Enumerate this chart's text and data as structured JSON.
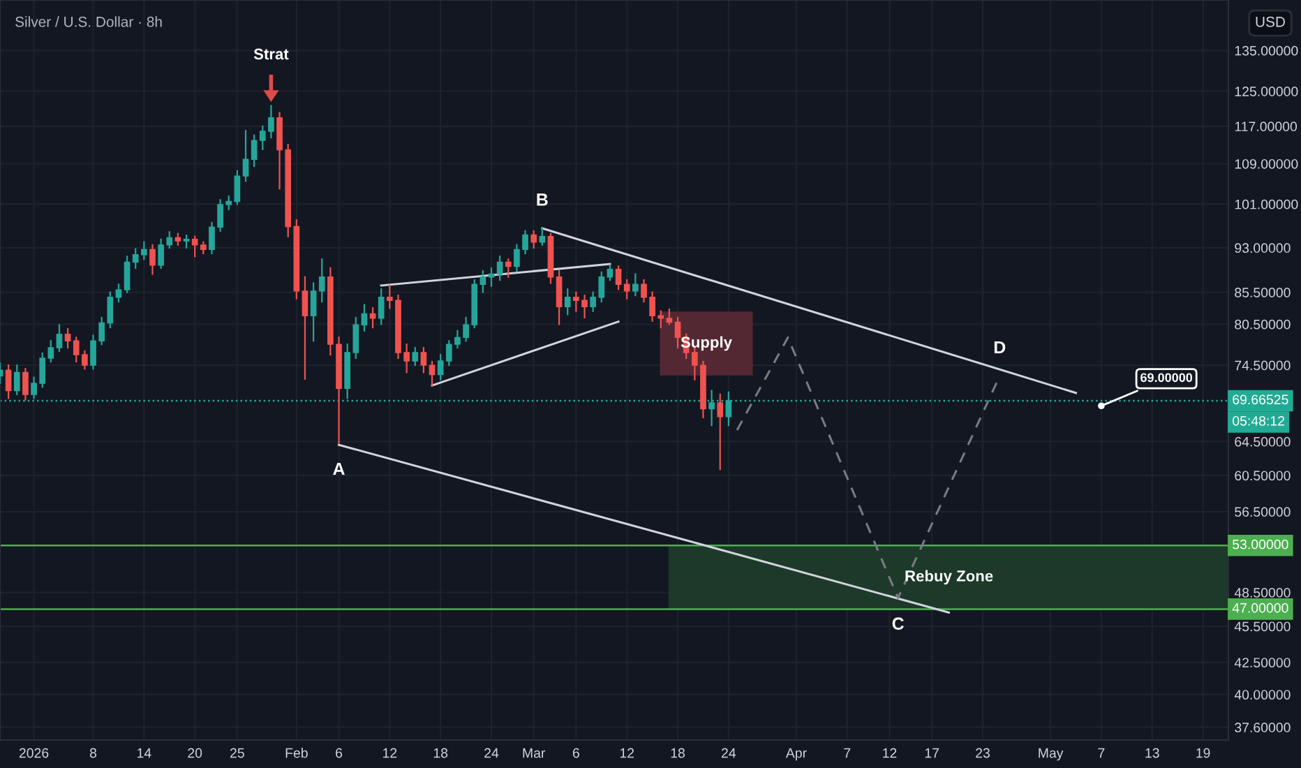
{
  "chart_data": {
    "type": "candlestick",
    "title": "Silver / U.S. Dollar · 8h",
    "ylabel": "USD",
    "x": [
      "2025-12-28",
      "2025-12-29",
      "2025-12-30",
      "2025-12-31",
      "2026-01-01",
      "2026-01-02",
      "2026-01-03",
      "2026-01-04",
      "2026-01-05",
      "2026-01-06",
      "2026-01-07",
      "2026-01-08",
      "2026-01-09",
      "2026-01-10",
      "2026-01-11",
      "2026-01-12",
      "2026-01-13",
      "2026-01-14",
      "2026-01-15",
      "2026-01-16",
      "2026-01-17",
      "2026-01-18",
      "2026-01-19",
      "2026-01-20",
      "2026-01-21",
      "2026-01-22",
      "2026-01-23",
      "2026-01-24",
      "2026-01-25",
      "2026-01-26",
      "2026-01-27",
      "2026-01-28",
      "2026-01-29",
      "2026-01-30",
      "2026-01-31",
      "2026-02-01",
      "2026-02-02",
      "2026-02-03",
      "2026-02-04",
      "2026-02-05",
      "2026-02-06",
      "2026-02-07",
      "2026-02-08",
      "2026-02-09",
      "2026-02-10",
      "2026-02-11",
      "2026-02-12",
      "2026-02-13",
      "2026-02-14",
      "2026-02-15",
      "2026-02-16",
      "2026-02-17",
      "2026-02-18",
      "2026-02-19",
      "2026-02-20",
      "2026-02-21",
      "2026-02-22",
      "2026-02-23",
      "2026-02-24",
      "2026-02-25",
      "2026-02-26",
      "2026-02-27",
      "2026-02-28",
      "2026-03-01",
      "2026-03-02",
      "2026-03-03",
      "2026-03-04",
      "2026-03-05",
      "2026-03-06",
      "2026-03-07",
      "2026-03-08",
      "2026-03-09",
      "2026-03-10",
      "2026-03-11",
      "2026-03-12",
      "2026-03-13",
      "2026-03-14",
      "2026-03-15",
      "2026-03-16",
      "2026-03-17",
      "2026-03-18",
      "2026-03-19",
      "2026-03-20",
      "2026-03-21",
      "2026-03-22",
      "2026-03-23",
      "2026-03-24"
    ],
    "ohlc": [
      [
        73.0,
        74.8,
        72.0,
        73.8
      ],
      [
        73.8,
        74.5,
        70.0,
        71.0
      ],
      [
        71.0,
        74.5,
        70.5,
        73.5
      ],
      [
        73.5,
        74.0,
        69.8,
        70.5
      ],
      [
        70.5,
        72.8,
        70.0,
        72.0
      ],
      [
        72.0,
        76.2,
        71.5,
        75.5
      ],
      [
        75.5,
        78.0,
        75.0,
        77.0
      ],
      [
        77.0,
        80.4,
        76.5,
        79.0
      ],
      [
        79.0,
        79.8,
        77.0,
        78.0
      ],
      [
        78.0,
        78.5,
        75.0,
        76.0
      ],
      [
        76.0,
        76.5,
        74.0,
        74.5
      ],
      [
        74.5,
        78.8,
        74.0,
        78.0
      ],
      [
        78.0,
        81.5,
        77.5,
        80.7
      ],
      [
        80.7,
        85.5,
        80.0,
        84.7
      ],
      [
        84.7,
        86.8,
        84.0,
        85.9
      ],
      [
        85.9,
        91.5,
        85.5,
        90.5
      ],
      [
        90.5,
        92.8,
        89.5,
        91.8
      ],
      [
        91.8,
        94.0,
        91.0,
        92.7
      ],
      [
        92.7,
        93.5,
        88.5,
        90.0
      ],
      [
        90.0,
        94.5,
        89.5,
        93.5
      ],
      [
        93.5,
        95.8,
        93.0,
        94.8
      ],
      [
        94.8,
        95.5,
        93.5,
        94.2
      ],
      [
        94.2,
        95.2,
        93.0,
        94.5
      ],
      [
        94.5,
        95.0,
        91.5,
        93.5
      ],
      [
        93.5,
        94.0,
        92.0,
        92.7
      ],
      [
        92.7,
        97.5,
        92.0,
        96.7
      ],
      [
        96.7,
        101.8,
        96.0,
        100.9
      ],
      [
        100.9,
        102.5,
        100.0,
        101.5
      ],
      [
        101.5,
        107.5,
        101.0,
        106.5
      ],
      [
        106.5,
        116.0,
        105.5,
        109.9
      ],
      [
        109.9,
        115.0,
        108.5,
        113.9
      ],
      [
        113.9,
        117.0,
        112.0,
        115.9
      ],
      [
        115.9,
        121.6,
        114.5,
        118.9
      ],
      [
        118.9,
        120.0,
        104.0,
        111.9
      ],
      [
        111.9,
        113.0,
        95.0,
        96.8
      ],
      [
        96.8,
        98.0,
        84.5,
        85.7
      ],
      [
        85.7,
        88.0,
        72.6,
        81.8
      ],
      [
        81.8,
        87.0,
        78.0,
        85.7
      ],
      [
        85.7,
        91.0,
        84.0,
        88.0
      ],
      [
        88.0,
        89.5,
        76.0,
        77.5
      ],
      [
        77.5,
        78.5,
        64.3,
        71.3
      ],
      [
        71.3,
        77.5,
        70.0,
        76.3
      ],
      [
        76.3,
        81.5,
        75.5,
        80.4
      ],
      [
        80.4,
        83.5,
        79.5,
        82.1
      ],
      [
        82.1,
        83.0,
        80.0,
        81.4
      ],
      [
        81.4,
        86.0,
        80.5,
        84.7
      ],
      [
        84.7,
        86.6,
        83.0,
        84.2
      ],
      [
        84.2,
        85.0,
        75.5,
        76.3
      ],
      [
        76.3,
        77.5,
        73.5,
        75.1
      ],
      [
        75.1,
        77.0,
        74.5,
        76.3
      ],
      [
        76.3,
        77.0,
        73.5,
        74.5
      ],
      [
        74.5,
        75.0,
        71.7,
        73.2
      ],
      [
        73.2,
        76.0,
        72.5,
        75.1
      ],
      [
        75.1,
        78.0,
        74.5,
        77.5
      ],
      [
        77.5,
        79.5,
        77.0,
        78.5
      ],
      [
        78.5,
        81.5,
        78.0,
        80.4
      ],
      [
        80.4,
        87.5,
        80.0,
        86.8
      ],
      [
        86.8,
        89.0,
        85.5,
        88.0
      ],
      [
        88.0,
        89.5,
        86.5,
        88.5
      ],
      [
        88.5,
        91.5,
        87.5,
        90.5
      ],
      [
        90.5,
        91.0,
        88.0,
        89.8
      ],
      [
        89.8,
        93.5,
        89.0,
        92.7
      ],
      [
        92.7,
        96.0,
        92.0,
        95.3
      ],
      [
        95.3,
        96.0,
        93.0,
        94.0
      ],
      [
        94.0,
        96.5,
        93.5,
        95.0
      ],
      [
        95.0,
        95.5,
        87.0,
        88.0
      ],
      [
        88.0,
        89.0,
        80.5,
        83.2
      ],
      [
        83.2,
        86.0,
        82.0,
        84.7
      ],
      [
        84.7,
        85.5,
        82.5,
        84.2
      ],
      [
        84.2,
        85.0,
        81.5,
        83.2
      ],
      [
        83.2,
        85.5,
        82.5,
        84.7
      ],
      [
        84.7,
        88.8,
        84.0,
        88.0
      ],
      [
        88.0,
        90.0,
        87.5,
        89.3
      ],
      [
        89.3,
        89.8,
        86.0,
        86.8
      ],
      [
        86.8,
        87.5,
        84.5,
        85.7
      ],
      [
        85.7,
        88.5,
        85.0,
        86.8
      ],
      [
        86.8,
        87.5,
        84.0,
        84.7
      ],
      [
        84.7,
        85.5,
        81.0,
        81.8
      ],
      [
        81.8,
        82.5,
        80.0,
        81.4
      ],
      [
        81.4,
        82.8,
        80.5,
        80.8
      ],
      [
        80.8,
        81.5,
        77.0,
        78.5
      ],
      [
        78.5,
        79.0,
        75.5,
        76.3
      ],
      [
        76.3,
        77.0,
        72.5,
        74.5
      ],
      [
        74.5,
        75.0,
        67.5,
        68.6
      ],
      [
        68.6,
        71.0,
        66.5,
        69.4
      ],
      [
        69.4,
        70.5,
        61.2,
        67.6
      ],
      [
        67.6,
        70.8,
        66.5,
        69.67
      ]
    ],
    "series": [
      {
        "type": "line",
        "color": "#d1d4dc",
        "x": [
          "2026-03-02",
          "2026-05-04"
        ],
        "values": [
          96.5,
          70.7
        ]
      },
      {
        "type": "line",
        "color": "#d1d4dc",
        "x": [
          "2026-02-06",
          "2026-04-19"
        ],
        "values": [
          64.1,
          46.7
        ]
      },
      {
        "type": "line",
        "color": "#d1d4dc",
        "x": [
          "2026-02-11",
          "2026-03-10"
        ],
        "values": [
          86.6,
          90.2
        ]
      },
      {
        "type": "line",
        "color": "#d1d4dc",
        "x": [
          "2026-02-17",
          "2026-03-11"
        ],
        "values": [
          71.7,
          80.9
        ]
      },
      {
        "type": "line",
        "color": "#787b86",
        "line_style": "dashed",
        "x": [
          "2026-03-25",
          "2026-03-31",
          "2026-04-13",
          "2026-04-25"
        ],
        "values": [
          65.9,
          78.5,
          48.0,
          73.0
        ]
      }
    ],
    "bands": [
      {
        "axis": "y",
        "from": 73.2,
        "to": 82.3,
        "label": "Supply",
        "color": "#5b2a35"
      },
      {
        "axis": "y",
        "from": 47,
        "to": 53,
        "label": "Rebuy Zone",
        "color": "#1f3d2b"
      }
    ],
    "ref_lines": [
      {
        "axis": "y",
        "value": 69.66525,
        "label": "69.66525",
        "color": "#22ab94",
        "line_style": "dotted"
      },
      {
        "axis": "y",
        "value": 53,
        "label": "53.00000",
        "color": "#4caf50"
      },
      {
        "axis": "y",
        "value": 47,
        "label": "47.00000",
        "color": "#4caf50"
      }
    ],
    "annotations": [
      {
        "text": "Strat",
        "x": "2026-01-29",
        "y": 121.6
      },
      {
        "text": "A",
        "x": "2026-02-06",
        "y": 64.3
      },
      {
        "text": "B",
        "x": "2026-03-02",
        "y": 96.5
      },
      {
        "text": "C",
        "x": "2026-04-13",
        "y": 48.0
      },
      {
        "text": "D",
        "x": "2026-04-25",
        "y": 73.0
      },
      {
        "text": "69.00000",
        "x": "2026-05-07",
        "y": 69.0
      },
      "05:48:12"
    ],
    "ylim": [
      36.7,
      148.5
    ],
    "yticks": [
      {
        "value": 135,
        "label": "135.00000"
      },
      {
        "value": 125,
        "label": "125.00000"
      },
      {
        "value": 117,
        "label": "117.00000"
      },
      {
        "value": 109,
        "label": "109.00000"
      },
      {
        "value": 101,
        "label": "101.00000"
      },
      {
        "value": 93,
        "label": "93.00000"
      },
      {
        "value": 85.5,
        "label": "85.50000"
      },
      {
        "value": 80.5,
        "label": "80.50000"
      },
      {
        "value": 74.5,
        "label": "74.50000"
      },
      {
        "value": 64.5,
        "label": "64.50000"
      },
      {
        "value": 60.5,
        "label": "60.50000"
      },
      {
        "value": 56.5,
        "label": "56.50000"
      },
      {
        "value": 48.5,
        "label": "48.50000"
      },
      {
        "value": 45.5,
        "label": "45.50000"
      },
      {
        "value": 42.5,
        "label": "42.50000"
      },
      {
        "value": 40,
        "label": "40.00000"
      },
      {
        "value": 37.6,
        "label": "37.60000"
      }
    ],
    "xlim": [
      "2025-12-28",
      "2026-05-22"
    ],
    "xticks": [
      {
        "value": "2026-01-01",
        "label": "2026"
      },
      {
        "value": "2026-01-08",
        "label": "8"
      },
      {
        "value": "2026-01-14",
        "label": "14"
      },
      {
        "value": "2026-01-20",
        "label": "20"
      },
      {
        "value": "2026-01-25",
        "label": "25"
      },
      {
        "value": "2026-02-01",
        "label": "Feb"
      },
      {
        "value": "2026-02-06",
        "label": "6"
      },
      {
        "value": "2026-02-12",
        "label": "12"
      },
      {
        "value": "2026-02-18",
        "label": "18"
      },
      {
        "value": "2026-02-24",
        "label": "24"
      },
      {
        "value": "2026-03-01",
        "label": "Mar"
      },
      {
        "value": "2026-03-06",
        "label": "6"
      },
      {
        "value": "2026-03-12",
        "label": "12"
      },
      {
        "value": "2026-03-18",
        "label": "18"
      },
      {
        "value": "2026-03-24",
        "label": "24"
      },
      {
        "value": "2026-04-01",
        "label": "Apr"
      },
      {
        "value": "2026-04-07",
        "label": "7"
      },
      {
        "value": "2026-04-12",
        "label": "12"
      },
      {
        "value": "2026-04-17",
        "label": "17"
      },
      {
        "value": "2026-04-23",
        "label": "23"
      },
      {
        "value": "2026-05-01",
        "label": "May"
      },
      {
        "value": "2026-05-07",
        "label": "7"
      },
      {
        "value": "2026-05-13",
        "label": "13"
      },
      {
        "value": "2026-05-19",
        "label": "19"
      }
    ],
    "log": true,
    "grid": true
  }
}
